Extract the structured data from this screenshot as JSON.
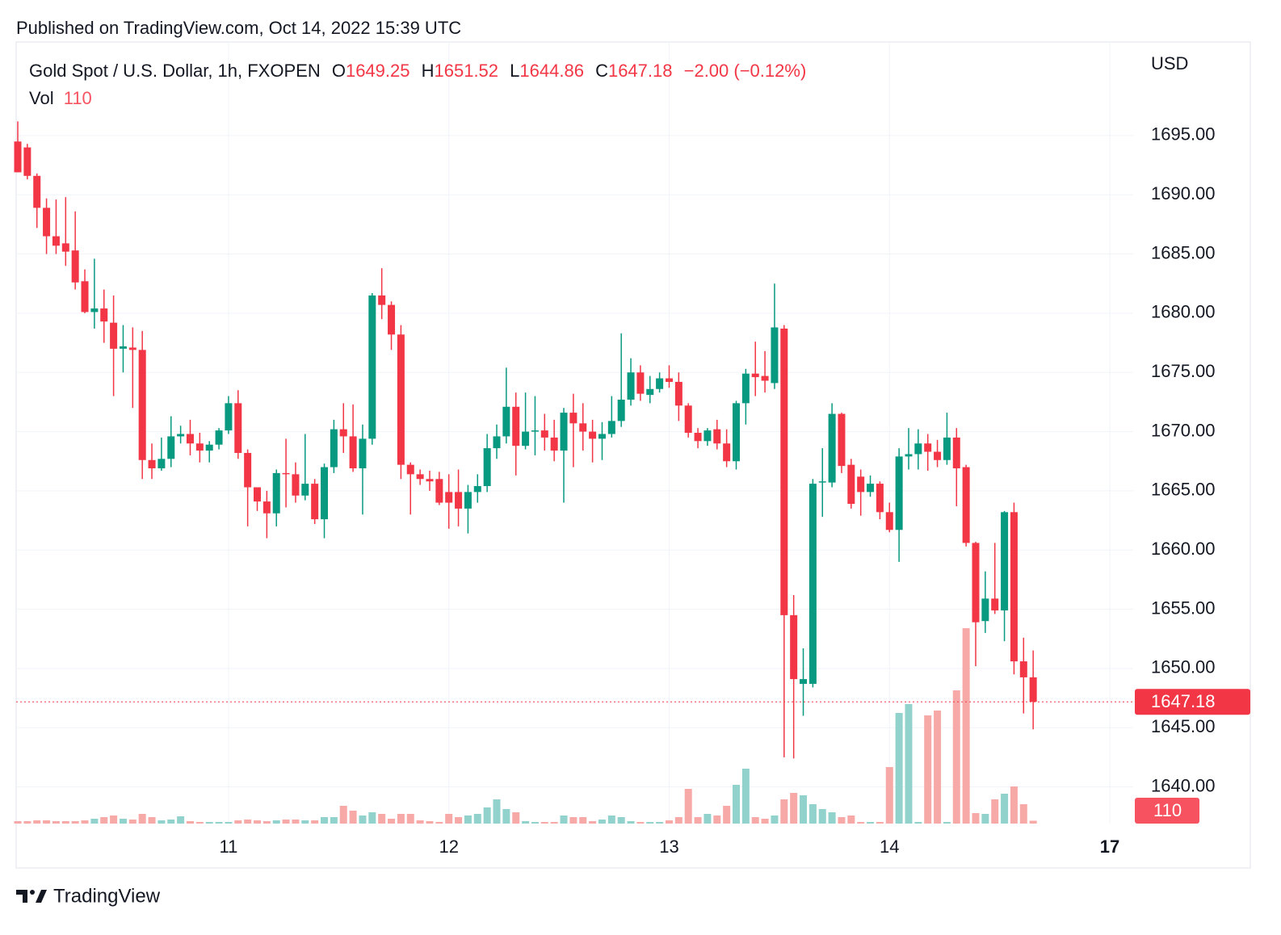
{
  "header": "Published on TradingView.com, Oct 14, 2022 15:39 UTC",
  "footer": "TradingView",
  "chart_data": {
    "type": "candlestick",
    "title": "Gold Spot / U.S. Dollar, 1h, FXOPEN",
    "legend_labels": {
      "open": "O",
      "high": "H",
      "low": "L",
      "close": "C",
      "volume": "Vol"
    },
    "change_label": "−2.00 (−0.12%)",
    "currency": "USD",
    "up_color": "#089981",
    "down_color": "#f23645",
    "volume_up_color": "#92d2cc",
    "volume_down_color": "#f7a9a7",
    "grid": true,
    "last_price_line": true,
    "ylim": [
      1636.9,
      1702.7
    ],
    "yticks": [
      {
        "value": 1640,
        "label": "1640.00"
      },
      {
        "value": 1645,
        "label": "1645.00"
      },
      {
        "value": 1650,
        "label": "1650.00"
      },
      {
        "value": 1655,
        "label": "1655.00"
      },
      {
        "value": 1660,
        "label": "1660.00"
      },
      {
        "value": 1665,
        "label": "1665.00"
      },
      {
        "value": 1670,
        "label": "1670.00"
      },
      {
        "value": 1675,
        "label": "1675.00"
      },
      {
        "value": 1680,
        "label": "1680.00"
      },
      {
        "value": 1685,
        "label": "1685.00"
      },
      {
        "value": 1690,
        "label": "1690.00"
      },
      {
        "value": 1695,
        "label": "1695.00"
      }
    ],
    "categories": [
      null,
      null,
      null,
      null,
      null,
      null,
      null,
      null,
      null,
      null,
      null,
      null,
      null,
      null,
      null,
      null,
      null,
      null,
      null,
      null,
      null,
      null,
      "11",
      null,
      null,
      null,
      null,
      null,
      null,
      null,
      null,
      null,
      null,
      null,
      null,
      null,
      null,
      null,
      null,
      null,
      null,
      null,
      null,
      null,
      null,
      "12",
      null,
      null,
      null,
      null,
      null,
      null,
      null,
      null,
      null,
      null,
      null,
      null,
      null,
      null,
      null,
      null,
      null,
      null,
      null,
      null,
      null,
      null,
      "13",
      null,
      null,
      null,
      null,
      null,
      null,
      null,
      null,
      null,
      null,
      null,
      null,
      null,
      null,
      null,
      null,
      null,
      null,
      null,
      null,
      null,
      null,
      "14",
      null,
      null,
      null,
      null,
      null,
      null,
      null,
      null,
      null,
      null,
      null,
      null,
      null,
      null,
      null,
      null,
      null,
      null,
      null,
      null,
      null,
      null,
      "17"
    ],
    "open": [
      1694.5,
      1694,
      1691.6,
      1688.9,
      1686.5,
      1685.9,
      1685.3,
      1682.7,
      1680.1,
      1680.4,
      1679.2,
      1677,
      1677.1,
      1676.9,
      1667.6,
      1666.9,
      1667.7,
      1669.6,
      1669.8,
      1669,
      1668.4,
      1668.9,
      1670.1,
      1672.4,
      1668.2,
      1665.3,
      1664.1,
      1663.1,
      1666.5,
      1666.4,
      1664.6,
      1665.6,
      1662.6,
      1667,
      1670.2,
      1669.6,
      1666.9,
      1669.4,
      1681.5,
      1680.7,
      1678.2,
      1667.2,
      1666.4,
      1666,
      1666,
      1664.9,
      1664.9,
      1663.5,
      1664.9,
      1665.4,
      1668.6,
      1669.6,
      1672.1,
      1668.8,
      1670,
      1670.1,
      1669.5,
      1668.4,
      1671.6,
      1670.7,
      1670,
      1669.4,
      1669.8,
      1670.9,
      1672.7,
      1675,
      1673.1,
      1673.6,
      1674.5,
      1674.2,
      1672.2,
      1669.9,
      1669.2,
      1670.2,
      1669,
      1667.5,
      1672.4,
      1674.9,
      1674.7,
      1674.1,
      1678.7,
      1654.5,
      1648.7,
      1648.7,
      1665.7,
      1665.7,
      1671.5,
      1667.2,
      1666.2,
      1664.9,
      1665.6,
      1663.2,
      1661.7,
      1667.9,
      1668.1,
      1669,
      1668.3,
      1667.6,
      1669.5,
      1667,
      1660.6,
      1654,
      1655.9,
      1654.9,
      1663.2,
      1650.6,
      1649.25,
      null,
      null,
      null,
      null,
      null,
      null,
      null,
      null
    ],
    "high": [
      1696.2,
      1694.3,
      1691.8,
      1689.7,
      1689.6,
      1689.8,
      1688.6,
      1683.7,
      1684.6,
      1682,
      1681.5,
      1679,
      1678.8,
      1678.5,
      1669,
      1669.5,
      1671.3,
      1670.5,
      1671,
      1669.9,
      1669.2,
      1670.3,
      1673,
      1673.5,
      1668.5,
      1665.3,
      1665,
      1666.8,
      1669.4,
      1667.4,
      1669.8,
      1666,
      1667.3,
      1671,
      1672.4,
      1672.3,
      1670.6,
      1681.7,
      1683.8,
      1681,
      1679,
      1667.4,
      1666.8,
      1666.7,
      1666.6,
      1666.4,
      1666.8,
      1665.5,
      1666.4,
      1669.8,
      1670.6,
      1675.4,
      1673.3,
      1673.3,
      1673,
      1671.5,
      1671,
      1672,
      1673.2,
      1672.4,
      1671,
      1670.8,
      1673,
      1678.3,
      1676.2,
      1675.6,
      1674.7,
      1675,
      1675.6,
      1675,
      1672.4,
      1670.3,
      1670.3,
      1671,
      1670.2,
      1672.6,
      1675.3,
      1677.6,
      1676.8,
      1682.5,
      1679,
      1656.2,
      1651.7,
      1666,
      1668.6,
      1672.4,
      1671.6,
      1667.7,
      1666.8,
      1666.3,
      1665.8,
      1664,
      1668.6,
      1670.3,
      1670.2,
      1669.8,
      1669.3,
      1671.6,
      1670.3,
      1667.2,
      1660.7,
      1658.2,
      1660.6,
      1663.3,
      1664,
      1652.6,
      1651.52,
      null,
      null,
      null,
      null,
      null,
      null,
      null,
      null
    ],
    "low": [
      1691.9,
      1691.3,
      1687.2,
      1685,
      1685,
      1684,
      1682,
      1680,
      1678.7,
      1677.5,
      1673,
      1675,
      1672,
      1666,
      1666,
      1666.7,
      1667,
      1669,
      1668,
      1667.4,
      1667.4,
      1668.5,
      1669.8,
      1667.7,
      1662,
      1663.3,
      1661,
      1662,
      1663.6,
      1664,
      1664.2,
      1662.2,
      1661,
      1666.5,
      1668.2,
      1666.6,
      1663,
      1668.9,
      1679.5,
      1676.9,
      1666,
      1663,
      1665.5,
      1665,
      1663.8,
      1661.8,
      1662,
      1661.4,
      1664,
      1664.9,
      1667.7,
      1669,
      1666.3,
      1668.5,
      1668,
      1668.4,
      1667.5,
      1664,
      1667,
      1668.4,
      1667.4,
      1667.6,
      1669.5,
      1670.4,
      1672.2,
      1672.6,
      1672.4,
      1673.3,
      1673.7,
      1670.9,
      1669.5,
      1668.6,
      1668.8,
      1668.5,
      1667,
      1666.8,
      1670.6,
      1673,
      1673.3,
      1673.6,
      1642.5,
      1642.4,
      1646,
      1648.4,
      1662.8,
      1665.3,
      1666.5,
      1663.5,
      1662.9,
      1664.5,
      1662.6,
      1661.5,
      1659,
      1666.8,
      1666.8,
      1666.7,
      1667,
      1667.2,
      1663.7,
      1660.3,
      1650.2,
      1653,
      1654.6,
      1652.3,
      1649.5,
      1646.2,
      1644.86,
      null,
      null,
      null,
      null,
      null,
      null,
      null,
      null
    ],
    "close": [
      1691.9,
      1691.6,
      1688.9,
      1686.5,
      1685.7,
      1685.2,
      1682.6,
      1680.1,
      1680.4,
      1679.3,
      1677,
      1677.2,
      1676.9,
      1667.6,
      1666.9,
      1667.7,
      1669.6,
      1669.8,
      1669,
      1668.4,
      1668.9,
      1670.1,
      1672.4,
      1668.2,
      1665.3,
      1664.1,
      1663.1,
      1666.5,
      1666.4,
      1664.6,
      1665.6,
      1662.6,
      1667,
      1670.2,
      1669.6,
      1666.9,
      1669.4,
      1681.5,
      1680.7,
      1678.2,
      1667.2,
      1666.4,
      1666,
      1665.8,
      1664,
      1664,
      1663.5,
      1664.9,
      1665.4,
      1668.6,
      1669.6,
      1672.1,
      1668.8,
      1670,
      1670.1,
      1669.5,
      1668.4,
      1671.6,
      1670.7,
      1670,
      1669.4,
      1669.8,
      1670.9,
      1672.7,
      1675,
      1673.2,
      1673.6,
      1674.5,
      1674.2,
      1672.2,
      1669.9,
      1669.2,
      1670.1,
      1669,
      1667.5,
      1672.4,
      1674.9,
      1674.6,
      1674.3,
      1678.8,
      1654.5,
      1649.1,
      1649.1,
      1665.6,
      1665.8,
      1671.5,
      1667.1,
      1663.9,
      1664.9,
      1665.6,
      1663.2,
      1661.7,
      1667.9,
      1668.1,
      1669,
      1668.3,
      1667.6,
      1669.5,
      1666.9,
      1660.6,
      1653.9,
      1655.9,
      1654.9,
      1663.2,
      1650.6,
      1649.25,
      1647.18,
      null,
      null,
      null,
      null,
      null,
      null,
      null,
      null
    ],
    "volume": [
      93,
      93,
      124,
      124,
      93,
      93,
      93,
      124,
      186,
      248,
      310,
      186,
      155,
      372,
      248,
      124,
      155,
      279,
      93,
      62,
      62,
      62,
      62,
      124,
      155,
      124,
      93,
      124,
      155,
      155,
      124,
      124,
      248,
      248,
      682,
      496,
      310,
      434,
      372,
      186,
      372,
      372,
      124,
      93,
      62,
      372,
      248,
      310,
      372,
      620,
      930,
      558,
      434,
      93,
      62,
      62,
      62,
      310,
      248,
      248,
      93,
      155,
      310,
      248,
      93,
      62,
      62,
      62,
      124,
      248,
      1333,
      248,
      372,
      310,
      682,
      1488,
      2108,
      248,
      186,
      310,
      930,
      1178,
      1085,
      744,
      558,
      434,
      248,
      310,
      62,
      62,
      62,
      2170,
      4247,
      4588,
      62,
      4154,
      4340,
      62,
      5115,
      7502,
      403,
      372,
      930,
      1147,
      1426,
      744,
      110,
      null,
      null,
      null,
      null,
      null,
      null,
      null,
      null
    ]
  }
}
